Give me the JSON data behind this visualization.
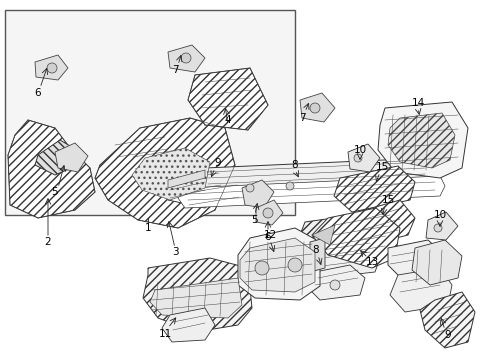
{
  "figsize": [
    4.89,
    3.6
  ],
  "dpi": 100,
  "bg": "#ffffff",
  "inset_bg": "#f5f5f5",
  "inset_border": "#666666",
  "part_fc": "#ffffff",
  "part_ec": "#333333",
  "hatch_color": "#888888",
  "lw_main": 0.7,
  "lw_detail": 0.4,
  "label_fs": 7.5
}
